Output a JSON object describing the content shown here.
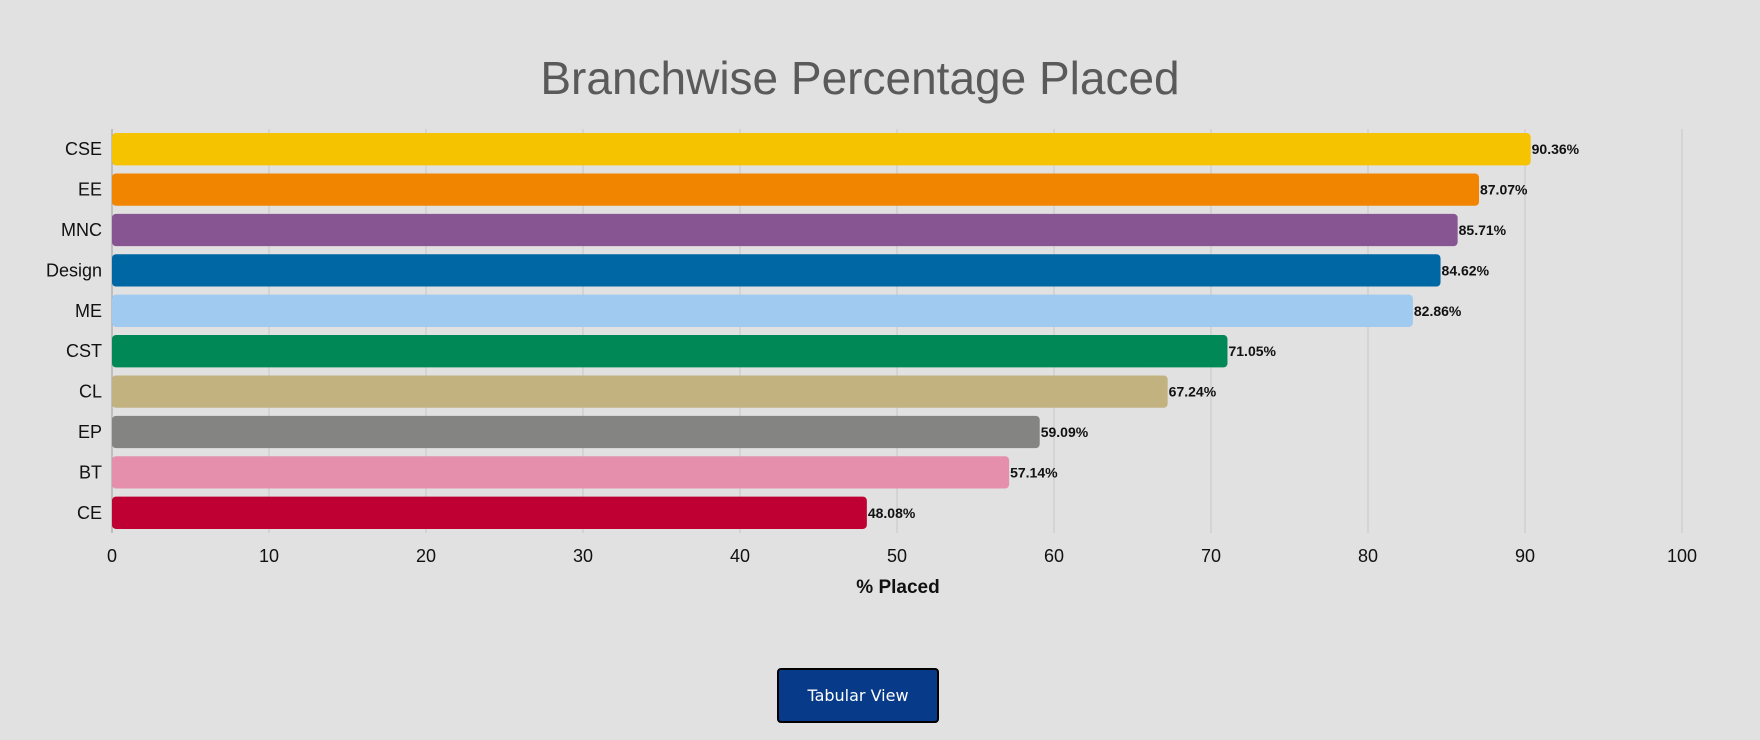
{
  "chart_data": {
    "type": "bar",
    "orientation": "horizontal",
    "title": "Branchwise Percentage Placed",
    "xlabel": "% Placed",
    "ylabel": "",
    "xlim": [
      0,
      100
    ],
    "x_ticks": [
      0,
      10,
      20,
      30,
      40,
      50,
      60,
      70,
      80,
      90,
      100
    ],
    "grid": true,
    "categories": [
      "CSE",
      "EE",
      "MNC",
      "Design",
      "ME",
      "CST",
      "CL",
      "EP",
      "BT",
      "CE"
    ],
    "values": [
      90.36,
      87.07,
      85.71,
      84.62,
      82.86,
      71.05,
      67.24,
      59.09,
      57.14,
      48.08
    ],
    "data_labels": [
      "90.36%",
      "87.07%",
      "85.71%",
      "84.62%",
      "82.86%",
      "71.05%",
      "67.24%",
      "59.09%",
      "57.14%",
      "48.08%"
    ],
    "colors": [
      "#f5c300",
      "#f28500",
      "#875692",
      "#0067a5",
      "#a1caf1",
      "#008856",
      "#c2b280",
      "#848482",
      "#e68fac",
      "#be0032"
    ]
  },
  "actions": {
    "tabular_view_label": "Tabular View"
  }
}
